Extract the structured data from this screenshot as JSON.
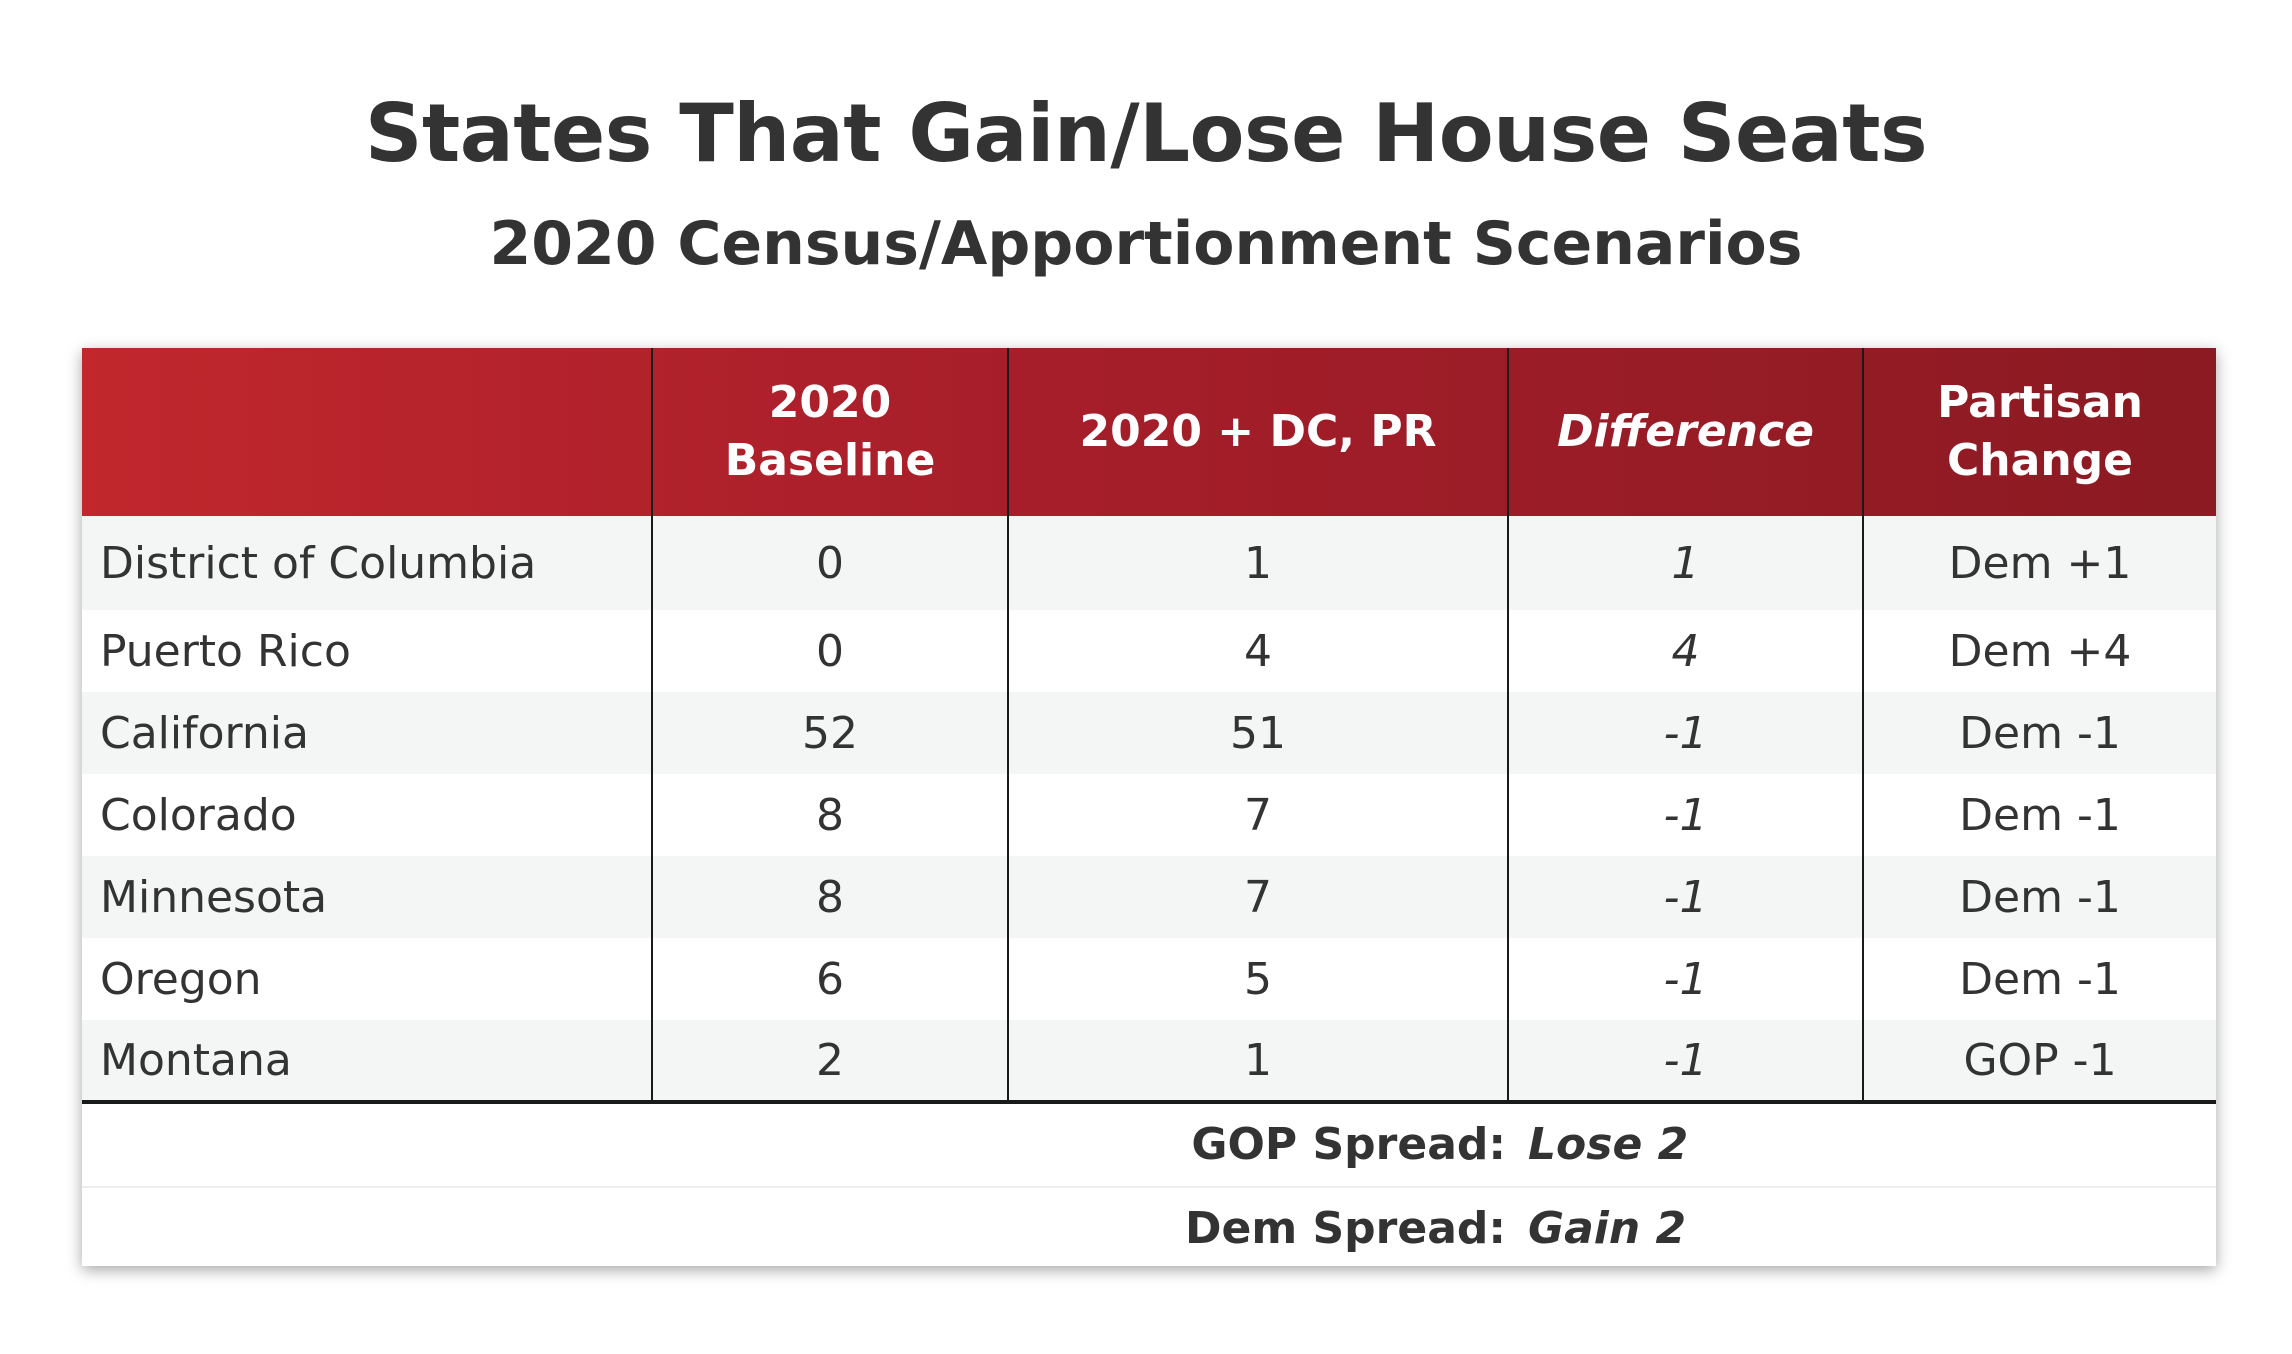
{
  "title": "States That Gain/Lose House Seats",
  "subtitle": "2020 Census/Apportionment Scenarios",
  "chart_data": {
    "type": "table",
    "title": "States That Gain/Lose House Seats",
    "subtitle": "2020 Census/Apportionment Scenarios",
    "columns": [
      "",
      "2020 Baseline",
      "2020 + DC, PR",
      "Difference",
      "Partisan Change"
    ],
    "header": {
      "col1_line1": "2020",
      "col1_line2": "Baseline",
      "col2": "2020 + DC, PR",
      "col3": "Difference",
      "col4_line1": "Partisan",
      "col4_line2": "Change"
    },
    "rows": [
      {
        "state": "District of Columbia",
        "baseline": "0",
        "with_dc_pr": "1",
        "difference": "1",
        "partisan": "Dem +1"
      },
      {
        "state": "Puerto Rico",
        "baseline": "0",
        "with_dc_pr": "4",
        "difference": "4",
        "partisan": "Dem +4"
      },
      {
        "state": "California",
        "baseline": "52",
        "with_dc_pr": "51",
        "difference": "-1",
        "partisan": "Dem -1"
      },
      {
        "state": "Colorado",
        "baseline": "8",
        "with_dc_pr": "7",
        "difference": "-1",
        "partisan": "Dem -1"
      },
      {
        "state": "Minnesota",
        "baseline": "8",
        "with_dc_pr": "7",
        "difference": "-1",
        "partisan": "Dem -1"
      },
      {
        "state": "Oregon",
        "baseline": "6",
        "with_dc_pr": "5",
        "difference": "-1",
        "partisan": "Dem -1"
      },
      {
        "state": "Montana",
        "baseline": "2",
        "with_dc_pr": "1",
        "difference": "-1",
        "partisan": "GOP -1"
      }
    ],
    "spreads": [
      {
        "label": "GOP Spread:",
        "value": "Lose 2"
      },
      {
        "label": "Dem Spread:",
        "value": "Gain 2"
      }
    ]
  },
  "colors": {
    "header_start": "#c1272d",
    "header_end": "#8b1a22",
    "row_shade": "#f4f5f5",
    "text": "#333333"
  }
}
